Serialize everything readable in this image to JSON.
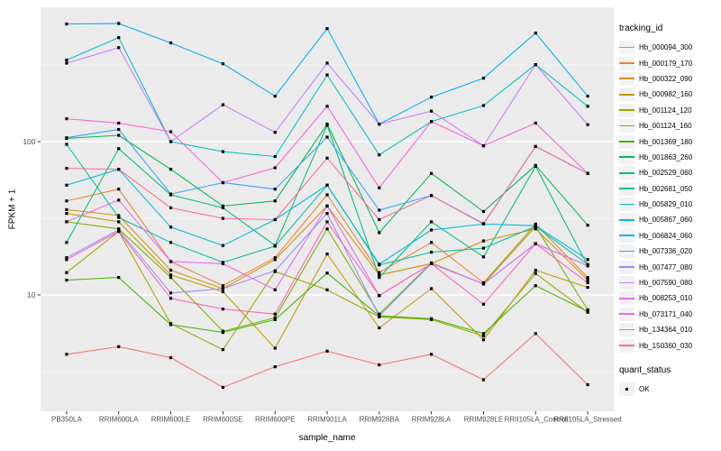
{
  "figure": {
    "panel_background": "#EBEBEB",
    "grid_color": "#FFFFFF",
    "axis_text_color": "#4D4D4D"
  },
  "axes": {
    "x_title": "sample_name",
    "y_title": "FPKM + 1"
  },
  "legend": {
    "tracking_title": "tracking_id",
    "quant_title": "quant_status",
    "quant_items": [
      {
        "label": "OK",
        "marker": "black-square"
      }
    ]
  },
  "chart_data": {
    "type": "line",
    "title": "",
    "xlabel": "sample_name",
    "ylabel": "FPKM + 1",
    "y_scale": "log10",
    "ylim": [
      1.8,
      750
    ],
    "grid": true,
    "legend_position": "right",
    "legend_titles": [
      "tracking_id",
      "quant_status"
    ],
    "point_marker": "black square (quant_status = OK)",
    "y_ticks": [
      {
        "label": "100",
        "value": 100
      },
      {
        "label": "10",
        "value": 10
      }
    ],
    "categories": [
      "PB350LA",
      "RRIM600LA",
      "RRIM600LE",
      "RRIM600SE",
      "RRIM600PE",
      "RRIM901LA",
      "RRIM928BA",
      "RRIM928LA",
      "RRIM928LE",
      "RRII105LA_Control",
      "RRII105LA_Stressed"
    ],
    "series": [
      {
        "name": "Hb_000094_300",
        "color": "#F8766D",
        "values": [
          4.1,
          4.6,
          3.9,
          2.5,
          3.4,
          4.3,
          3.5,
          4.1,
          2.8,
          5.6,
          2.6
        ]
      },
      {
        "name": "Hb_000179_170",
        "color": "#EA8331",
        "values": [
          41,
          49,
          16.5,
          11.5,
          17.5,
          45,
          14,
          22,
          12,
          29,
          13
        ]
      },
      {
        "name": "Hb_000322_090",
        "color": "#D89000",
        "values": [
          36,
          33,
          14.5,
          11,
          17,
          38,
          13.5,
          16,
          22.5,
          27,
          12.5
        ]
      },
      {
        "name": "Hb_000982_160",
        "color": "#C09B00",
        "values": [
          34,
          30,
          13.5,
          10.5,
          4.5,
          18.5,
          6.1,
          11,
          5.1,
          14.5,
          11.2
        ]
      },
      {
        "name": "Hb_001124_120",
        "color": "#A3A500",
        "values": [
          14,
          26,
          6.5,
          4.4,
          14.2,
          10.8,
          7.2,
          6.9,
          5.4,
          13.8,
          7.7
        ]
      },
      {
        "name": "Hb_001124_160",
        "color": "#7CAE00",
        "values": [
          30,
          27,
          13,
          5.8,
          7.1,
          27,
          7.5,
          16.2,
          11.8,
          28,
          8.0
        ]
      },
      {
        "name": "Hb_001369_180",
        "color": "#39B600",
        "values": [
          12.5,
          13,
          6.4,
          5.7,
          6.9,
          13.9,
          7.3,
          7.0,
          5.6,
          11.5,
          7.8
        ]
      },
      {
        "name": "Hb_001863_260",
        "color": "#00BB4E",
        "values": [
          105,
          110,
          66,
          38,
          41,
          130,
          25.5,
          62,
          35,
          70,
          28.5
        ]
      },
      {
        "name": "Hb_002529_060",
        "color": "#00BF7D",
        "values": [
          22,
          90,
          45,
          37,
          21,
          128,
          13,
          30,
          17.7,
          69,
          15.5
        ]
      },
      {
        "name": "Hb_002681_050",
        "color": "#00C1A3",
        "values": [
          96,
          32,
          22,
          16.3,
          20.8,
          52,
          15.7,
          19,
          20.2,
          28,
          15.8
        ]
      },
      {
        "name": "Hb_005829_010",
        "color": "#00BFC4",
        "values": [
          340,
          477,
          100,
          86,
          80,
          272,
          82,
          135,
          172,
          318,
          170
        ]
      },
      {
        "name": "Hb_005867_060",
        "color": "#00BAE0",
        "values": [
          52,
          66,
          27.7,
          21,
          31,
          52,
          15.9,
          26.5,
          29,
          28.3,
          17
        ]
      },
      {
        "name": "Hb_006824_060",
        "color": "#00B0F6",
        "values": [
          585,
          590,
          440,
          322,
          198,
          546,
          130,
          195,
          259,
          510,
          198
        ]
      },
      {
        "name": "Hb_007336_020",
        "color": "#35A2FF",
        "values": [
          106,
          120,
          45.5,
          54,
          49,
          107,
          35.7,
          44.5,
          29.2,
          93,
          62
        ]
      },
      {
        "name": "Hb_007477_080",
        "color": "#9590FF",
        "values": [
          17.5,
          26.6,
          10.3,
          11,
          14.4,
          34,
          7.3,
          16,
          11.8,
          21.6,
          15.5
        ]
      },
      {
        "name": "Hb_007590_080",
        "color": "#C77CFF",
        "values": [
          325,
          410,
          100,
          174,
          115,
          325,
          130,
          158,
          94,
          318,
          129
        ]
      },
      {
        "name": "Hb_008253_010",
        "color": "#E76BF3",
        "values": [
          30,
          41.6,
          16.5,
          16,
          10.8,
          38,
          9.9,
          16,
          11.8,
          21.6,
          15.5
        ]
      },
      {
        "name": "Hb_073171_040",
        "color": "#FA62DB",
        "values": [
          141,
          132,
          116,
          54,
          67.5,
          170,
          50,
          135,
          94,
          132,
          62
        ]
      },
      {
        "name": "Hb_134364_010",
        "color": "#FF62BC",
        "values": [
          17,
          26,
          9.5,
          8.1,
          7.5,
          30,
          9.9,
          16,
          8.7,
          21.6,
          12
        ]
      },
      {
        "name": "Hb_150360_030",
        "color": "#FF6A98",
        "values": [
          67,
          66,
          37,
          31.6,
          31,
          78,
          31,
          44.5,
          29,
          93,
          62
        ]
      }
    ]
  }
}
